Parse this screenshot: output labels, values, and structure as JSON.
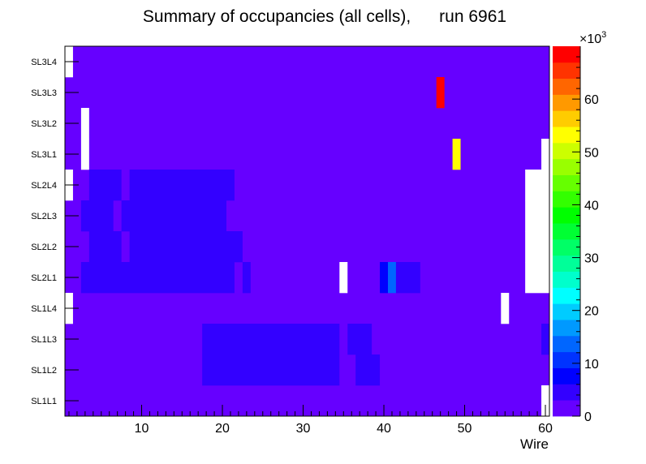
{
  "chart_data": {
    "type": "heatmap",
    "title": "Summary of occupancies (all cells),      run 6961",
    "xlabel": "Wire",
    "ylabel": "",
    "x_range": [
      0.5,
      60.5
    ],
    "x_ticks": [
      10,
      20,
      30,
      40,
      50,
      60
    ],
    "rows": [
      "SL1L1",
      "SL1L2",
      "SL1L3",
      "SL1L4",
      "SL2L1",
      "SL2L2",
      "SL2L3",
      "SL2L4",
      "SL3L1",
      "SL3L2",
      "SL3L3",
      "SL3L4"
    ],
    "z_range": [
      0,
      70000
    ],
    "z_ticks": [
      0,
      10,
      20,
      30,
      40,
      50,
      60
    ],
    "z_multiplier": "×10",
    "z_multiplier_exp": "3",
    "background_value": 1500,
    "cells": [
      {
        "row": "SL3L4",
        "from": 1,
        "to": 1,
        "value": 0
      },
      {
        "row": "SL3L3",
        "from": 47,
        "to": 47,
        "value": 67000
      },
      {
        "row": "SL3L2",
        "from": 3,
        "to": 3,
        "value": 0
      },
      {
        "row": "SL3L1",
        "from": 3,
        "to": 3,
        "value": 0
      },
      {
        "row": "SL3L1",
        "from": 49,
        "to": 49,
        "value": 52000
      },
      {
        "row": "SL3L1",
        "from": 60,
        "to": 60,
        "value": 0
      },
      {
        "row": "SL2L4",
        "from": 1,
        "to": 1,
        "value": 0
      },
      {
        "row": "SL2L4",
        "from": 4,
        "to": 7,
        "value": 6000
      },
      {
        "row": "SL2L4",
        "from": 9,
        "to": 21,
        "value": 6000
      },
      {
        "row": "SL2L4",
        "from": 58,
        "to": 60,
        "value": 0
      },
      {
        "row": "SL2L3",
        "from": 3,
        "to": 6,
        "value": 6000
      },
      {
        "row": "SL2L3",
        "from": 8,
        "to": 20,
        "value": 6000
      },
      {
        "row": "SL2L3",
        "from": 58,
        "to": 60,
        "value": 0
      },
      {
        "row": "SL2L2",
        "from": 4,
        "to": 7,
        "value": 6000
      },
      {
        "row": "SL2L2",
        "from": 9,
        "to": 22,
        "value": 6000
      },
      {
        "row": "SL2L2",
        "from": 58,
        "to": 60,
        "value": 0
      },
      {
        "row": "SL2L1",
        "from": 3,
        "to": 21,
        "value": 6000
      },
      {
        "row": "SL2L1",
        "from": 23,
        "to": 23,
        "value": 6000
      },
      {
        "row": "SL2L1",
        "from": 35,
        "to": 35,
        "value": 0
      },
      {
        "row": "SL2L1",
        "from": 40,
        "to": 40,
        "value": 8000
      },
      {
        "row": "SL2L1",
        "from": 41,
        "to": 41,
        "value": 12500
      },
      {
        "row": "SL2L1",
        "from": 42,
        "to": 44,
        "value": 6000
      },
      {
        "row": "SL2L1",
        "from": 58,
        "to": 60,
        "value": 0
      },
      {
        "row": "SL1L4",
        "from": 1,
        "to": 1,
        "value": 0
      },
      {
        "row": "SL1L4",
        "from": 55,
        "to": 55,
        "value": 0
      },
      {
        "row": "SL1L3",
        "from": 18,
        "to": 34,
        "value": 6000
      },
      {
        "row": "SL1L3",
        "from": 36,
        "to": 38,
        "value": 6000
      },
      {
        "row": "SL1L3",
        "from": 60,
        "to": 60,
        "value": 6000
      },
      {
        "row": "SL1L2",
        "from": 18,
        "to": 34,
        "value": 6000
      },
      {
        "row": "SL1L2",
        "from": 37,
        "to": 39,
        "value": 6000
      },
      {
        "row": "SL1L1",
        "from": 60,
        "to": 60,
        "value": 0
      }
    ],
    "palette": [
      "#6600ff",
      "#3300ff",
      "#0000ff",
      "#0033ff",
      "#0066ff",
      "#0099ff",
      "#00ccff",
      "#00ffff",
      "#00ffcc",
      "#00ff99",
      "#00ff66",
      "#00ff33",
      "#00ff00",
      "#33ff00",
      "#66ff00",
      "#99ff00",
      "#ccff00",
      "#ffff00",
      "#ffcc00",
      "#ff9900",
      "#ff6600",
      "#ff3300",
      "#ff0000"
    ]
  }
}
